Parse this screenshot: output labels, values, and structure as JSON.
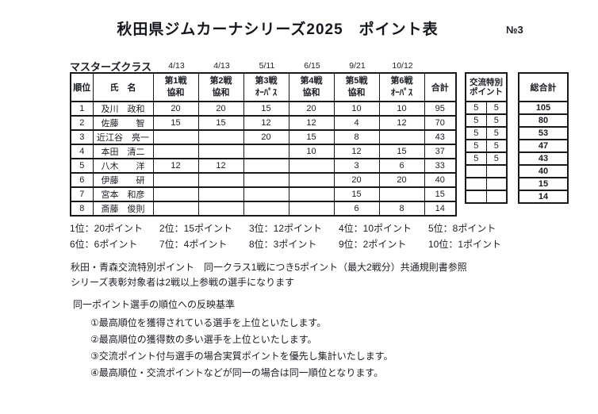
{
  "header": {
    "title": "秋田県ジムカーナシリーズ2025　ポイント表",
    "page_no": "№3"
  },
  "table": {
    "class_label": "マスターズクラス",
    "round_dates": [
      "4/13",
      "4/13",
      "5/11",
      "6/15",
      "9/21",
      "10/12"
    ],
    "columns": {
      "rank": "順位",
      "name": "氏　名",
      "rounds": [
        {
          "line1": "第1戦",
          "line2": "協和"
        },
        {
          "line1": "第2戦",
          "line2": "協和"
        },
        {
          "line1": "第3戦",
          "line2": "ｵｰﾊﾟｽ"
        },
        {
          "line1": "第4戦",
          "line2": "協和"
        },
        {
          "line1": "第5戦",
          "line2": "協和"
        },
        {
          "line1": "第6戦",
          "line2": "ｵｰﾊﾟｽ"
        }
      ],
      "total": "合計",
      "exchange_line1": "交流特別",
      "exchange_line2": "ポイント",
      "grand_total": "総合計"
    },
    "rows": [
      {
        "rank": "1",
        "name": "及川　政和",
        "rounds": [
          "20",
          "20",
          "15",
          "20",
          "10",
          "10"
        ],
        "total": "95",
        "exchange": [
          "5",
          "5"
        ],
        "grand_total": "105"
      },
      {
        "rank": "2",
        "name": "佐藤　　智",
        "rounds": [
          "15",
          "15",
          "12",
          "12",
          "4",
          "12"
        ],
        "total": "70",
        "exchange": [
          "5",
          "5"
        ],
        "grand_total": "80"
      },
      {
        "rank": "3",
        "name": "近江谷　亮一",
        "rounds": [
          "",
          "",
          "20",
          "15",
          "8",
          ""
        ],
        "total": "43",
        "exchange": [
          "5",
          "5"
        ],
        "grand_total": "53"
      },
      {
        "rank": "4",
        "name": "本田　清二",
        "rounds": [
          "",
          "",
          "",
          "10",
          "12",
          "15"
        ],
        "total": "37",
        "exchange": [
          "5",
          "5"
        ],
        "grand_total": "47"
      },
      {
        "rank": "5",
        "name": "八木　　洋",
        "rounds": [
          "12",
          "12",
          "",
          "",
          "3",
          "6"
        ],
        "total": "33",
        "exchange": [
          "5",
          "5"
        ],
        "grand_total": "43"
      },
      {
        "rank": "6",
        "name": "伊藤　　研",
        "rounds": [
          "",
          "",
          "",
          "",
          "20",
          "20"
        ],
        "total": "40",
        "exchange": [
          "",
          ""
        ],
        "grand_total": "40"
      },
      {
        "rank": "7",
        "name": "宮本　和彦",
        "rounds": [
          "",
          "",
          "",
          "",
          "15",
          ""
        ],
        "total": "15",
        "exchange": [
          "",
          ""
        ],
        "grand_total": "15"
      },
      {
        "rank": "8",
        "name": "斎藤　俊則",
        "rounds": [
          "",
          "",
          "",
          "",
          "6",
          "8"
        ],
        "total": "14",
        "exchange": [
          "",
          ""
        ],
        "grand_total": "14"
      }
    ]
  },
  "points_legend": [
    "1位：20ポイント",
    "2位：15ポイント",
    "3位：12ポイント",
    "4位：10ポイント",
    "5位：8ポイント",
    "6位：6ポイント",
    "7位：4ポイント",
    "8位：3ポイント",
    "9位：2ポイント",
    "10位：1ポイント"
  ],
  "notes": [
    "秋田・青森交流特別ポイント　同一クラス1戦につき5ポイント（最大2戦分）共通規則書参照",
    "シリーズ表彰対象者は2戦以上参戦の選手になります"
  ],
  "criteria": {
    "heading": "同一ポイント選手の順位への反映基準",
    "items": [
      "①最高順位を獲得されている選手を上位といたします。",
      "②最高順位の獲得数の多い選手を上位といたします。",
      "③交流ポイント付与選手の場合実質ポイントを優先し集計いたします。",
      "④最高順位・交流ポイントなどが同一の場合は同一順位となります。"
    ]
  },
  "colors": {
    "text": "#1b1b24",
    "border": "#17171c",
    "background": "#ffffff"
  }
}
